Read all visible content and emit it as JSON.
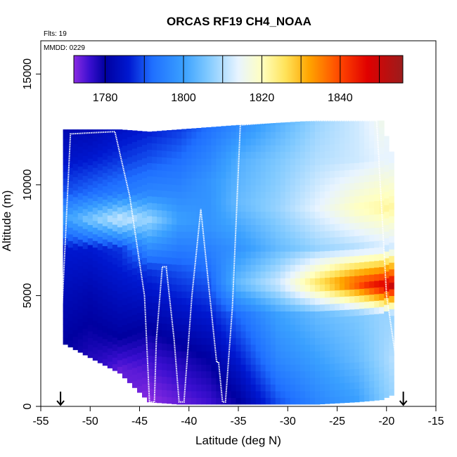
{
  "chart_data": {
    "type": "heatmap",
    "title": "ORCAS RF19 CH4_NOAA",
    "annotations": [
      "Flts: 19",
      "MMDD: 0229"
    ],
    "xlabel": "Latitude (deg N)",
    "ylabel": "Altitude (m)",
    "xlim": [
      -55,
      -15
    ],
    "ylim": [
      0,
      16500
    ],
    "xticks": [
      -55,
      -50,
      -45,
      -40,
      -35,
      -30,
      -25,
      -20,
      -15
    ],
    "yticks": [
      0,
      5000,
      10000,
      15000
    ],
    "grid": false,
    "colorbar": {
      "range": [
        1772,
        1856
      ],
      "ticks": [
        1780,
        1800,
        1820,
        1840
      ],
      "stops": [
        {
          "v": 1772,
          "color": "#8a2be2"
        },
        {
          "v": 1776,
          "color": "#3b0fd0"
        },
        {
          "v": 1780,
          "color": "#0000a0"
        },
        {
          "v": 1786,
          "color": "#0018d0"
        },
        {
          "v": 1792,
          "color": "#1f6fff"
        },
        {
          "v": 1800,
          "color": "#3aa0ff"
        },
        {
          "v": 1806,
          "color": "#7dc8ff"
        },
        {
          "v": 1814,
          "color": "#e8f4ff"
        },
        {
          "v": 1820,
          "color": "#ffffc0"
        },
        {
          "v": 1826,
          "color": "#ffe35a"
        },
        {
          "v": 1832,
          "color": "#ffa500"
        },
        {
          "v": 1840,
          "color": "#ff4500"
        },
        {
          "v": 1847,
          "color": "#e00000"
        },
        {
          "v": 1856,
          "color": "#9b1c1c"
        }
      ]
    },
    "field": {
      "description_grid": "CH4 mixing ratio (ppb) sampled along latitude columns",
      "columns": [
        {
          "lat": -52.5,
          "bottom": 2800,
          "top": 12500,
          "profile": [
            [
              2800,
              1780
            ],
            [
              5000,
              1783
            ],
            [
              7000,
              1786
            ],
            [
              8400,
              1800
            ],
            [
              9500,
              1790
            ],
            [
              11000,
              1785
            ],
            [
              12500,
              1782
            ]
          ]
        },
        {
          "lat": -50,
          "bottom": 2200,
          "top": 12500,
          "profile": [
            [
              2200,
              1778
            ],
            [
              5000,
              1782
            ],
            [
              7000,
              1786
            ],
            [
              8300,
              1806
            ],
            [
              9500,
              1792
            ],
            [
              11000,
              1786
            ],
            [
              12500,
              1782
            ]
          ]
        },
        {
          "lat": -47,
          "bottom": 1500,
          "top": 12500,
          "profile": [
            [
              1500,
              1774
            ],
            [
              3000,
              1780
            ],
            [
              5000,
              1784
            ],
            [
              7000,
              1788
            ],
            [
              8300,
              1812
            ],
            [
              9500,
              1794
            ],
            [
              11000,
              1788
            ],
            [
              12500,
              1784
            ]
          ]
        },
        {
          "lat": -44,
          "bottom": 200,
          "top": 12400,
          "profile": [
            [
              200,
              1772
            ],
            [
              2000,
              1776
            ],
            [
              4000,
              1782
            ],
            [
              6000,
              1788
            ],
            [
              8300,
              1808
            ],
            [
              9500,
              1796
            ],
            [
              11000,
              1790
            ],
            [
              12400,
              1786
            ]
          ]
        },
        {
          "lat": -41,
          "bottom": 100,
          "top": 12500,
          "profile": [
            [
              100,
              1774
            ],
            [
              2000,
              1778
            ],
            [
              4000,
              1784
            ],
            [
              6000,
              1790
            ],
            [
              8300,
              1800
            ],
            [
              9500,
              1796
            ],
            [
              11000,
              1792
            ],
            [
              12500,
              1788
            ]
          ]
        },
        {
          "lat": -38,
          "bottom": 100,
          "top": 12600,
          "profile": [
            [
              100,
              1776
            ],
            [
              2000,
              1780
            ],
            [
              4000,
              1786
            ],
            [
              6000,
              1792
            ],
            [
              8000,
              1798
            ],
            [
              10000,
              1798
            ],
            [
              12600,
              1792
            ]
          ]
        },
        {
          "lat": -35,
          "bottom": 100,
          "top": 12700,
          "profile": [
            [
              100,
              1780
            ],
            [
              2000,
              1786
            ],
            [
              4000,
              1792
            ],
            [
              5400,
              1804
            ],
            [
              7000,
              1798
            ],
            [
              9000,
              1804
            ],
            [
              11000,
              1802
            ],
            [
              12700,
              1796
            ]
          ]
        },
        {
          "lat": -31,
          "bottom": 100,
          "top": 12800,
          "profile": [
            [
              100,
              1790
            ],
            [
              2000,
              1796
            ],
            [
              4000,
              1800
            ],
            [
              5400,
              1812
            ],
            [
              7000,
              1804
            ],
            [
              8800,
              1808
            ],
            [
              11000,
              1806
            ],
            [
              12800,
              1802
            ]
          ]
        },
        {
          "lat": -27,
          "bottom": 100,
          "top": 12900,
          "profile": [
            [
              100,
              1796
            ],
            [
              2000,
              1800
            ],
            [
              4000,
              1804
            ],
            [
              5400,
              1826
            ],
            [
              7000,
              1808
            ],
            [
              8800,
              1814
            ],
            [
              11000,
              1810
            ],
            [
              12900,
              1808
            ]
          ]
        },
        {
          "lat": -23,
          "bottom": 200,
          "top": 12900,
          "profile": [
            [
              200,
              1800
            ],
            [
              2000,
              1804
            ],
            [
              4000,
              1806
            ],
            [
              5400,
              1840
            ],
            [
              7000,
              1810
            ],
            [
              8800,
              1820
            ],
            [
              11000,
              1812
            ],
            [
              12900,
              1812
            ]
          ]
        },
        {
          "lat": -20.5,
          "bottom": 300,
          "top": 12900,
          "profile": [
            [
              300,
              1806
            ],
            [
              2000,
              1808
            ],
            [
              4000,
              1808
            ],
            [
              5300,
              1848
            ],
            [
              7000,
              1812
            ],
            [
              8800,
              1822
            ],
            [
              11000,
              1814
            ],
            [
              12900,
              1816
            ]
          ]
        },
        {
          "lat": -19.5,
          "bottom": 500,
          "top": 11500,
          "profile": [
            [
              500,
              1808
            ],
            [
              2000,
              1810
            ],
            [
              4000,
              1808
            ],
            [
              5300,
              1850
            ],
            [
              7000,
              1812
            ],
            [
              8800,
              1822
            ],
            [
              11000,
              1814
            ]
          ]
        }
      ]
    },
    "flight_track": [
      [
        -53,
        3000
      ],
      [
        -52,
        12300
      ],
      [
        -47.5,
        12400
      ],
      [
        -46,
        9500
      ],
      [
        -44.5,
        5000
      ],
      [
        -44,
        200
      ],
      [
        -43.5,
        200
      ],
      [
        -43.3,
        3000
      ],
      [
        -42.7,
        6300
      ],
      [
        -42.3,
        6300
      ],
      [
        -41.5,
        3000
      ],
      [
        -41,
        200
      ],
      [
        -40.5,
        200
      ],
      [
        -39.7,
        5000
      ],
      [
        -38.8,
        8900
      ],
      [
        -37.9,
        5000
      ],
      [
        -37.2,
        2000
      ],
      [
        -37,
        2000
      ],
      [
        -36.6,
        200
      ],
      [
        -36.3,
        200
      ],
      [
        -35.6,
        4500
      ],
      [
        -34.8,
        12700
      ],
      [
        -29,
        12900
      ],
      [
        -21,
        12900
      ],
      [
        -20.5,
        9000
      ],
      [
        -20,
        5000
      ],
      [
        -19,
        2000
      ],
      [
        -18.5,
        300
      ]
    ],
    "markers": [
      {
        "type": "arrow-down",
        "lat": -53
      },
      {
        "type": "arrow-down",
        "lat": -18.3
      }
    ]
  }
}
